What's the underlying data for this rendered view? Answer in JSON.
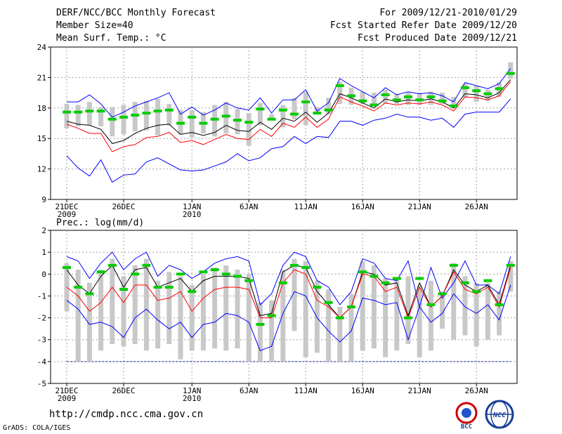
{
  "header": {
    "title": "DERF/NCC/BCC Monthly Forecast",
    "member": "Member Size=40",
    "variable1": "Mean Surf. Temp.: °C",
    "period": "For 2009/12/21-2010/01/29",
    "started": "Fcst Started Refer Date 2009/12/20",
    "produced": "Fcst Produced Date 2009/12/21"
  },
  "variable2": "Prec.: log(mm/d)",
  "footer": {
    "url": "http://cmdp.ncc.cma.gov.cn",
    "grads": "GrADS: COLA/IGES"
  },
  "logos": {
    "bcc": "BCC",
    "ncc": "NCC"
  },
  "colors": {
    "max": "#0000ff",
    "min": "#ff0000",
    "mean": "#000000",
    "median": "#00cc00",
    "box": "#c8c8c8",
    "grid": "#a0a0a0"
  },
  "chart_data": [
    {
      "type": "line",
      "title": "Mean Surf. Temp.: °C",
      "ylim": [
        9,
        24
      ],
      "yticks": [
        9,
        12,
        15,
        18,
        21,
        24
      ],
      "xticks": [
        {
          "day": 1,
          "label": "21DEC",
          "sub": "2009"
        },
        {
          "day": 6,
          "label": "26DEC",
          "sub": ""
        },
        {
          "day": 12,
          "label": "1JAN",
          "sub": "2010"
        },
        {
          "day": 17,
          "label": "6JAN",
          "sub": ""
        },
        {
          "day": 22,
          "label": "11JAN",
          "sub": ""
        },
        {
          "day": 27,
          "label": "16JAN",
          "sub": ""
        },
        {
          "day": 32,
          "label": "21JAN",
          "sub": ""
        },
        {
          "day": 37,
          "label": "26JAN",
          "sub": ""
        }
      ],
      "days": 40,
      "series": [
        {
          "name": "max",
          "values": [
            18.6,
            18.6,
            19.3,
            18.4,
            17.1,
            17.6,
            18.2,
            18.6,
            19.0,
            19.5,
            17.4,
            18.1,
            17.3,
            17.8,
            18.5,
            18.0,
            17.8,
            19.0,
            17.5,
            18.8,
            18.8,
            19.8,
            17.7,
            18.5,
            20.9,
            20.2,
            19.6,
            19.0,
            20.0,
            19.3,
            19.6,
            19.4,
            19.5,
            19.2,
            18.6,
            20.5,
            20.2,
            19.9,
            20.4,
            21.9
          ]
        },
        {
          "name": "mean",
          "values": [
            16.7,
            16.4,
            16.3,
            15.9,
            14.5,
            14.8,
            15.5,
            16.0,
            16.3,
            16.4,
            15.4,
            15.6,
            15.3,
            15.6,
            16.3,
            15.8,
            15.7,
            16.6,
            15.9,
            17.0,
            16.7,
            17.6,
            16.6,
            17.5,
            19.4,
            19.0,
            18.5,
            18.0,
            18.9,
            18.6,
            18.8,
            18.7,
            18.9,
            18.6,
            18.0,
            19.4,
            19.3,
            19.0,
            19.5,
            20.8
          ]
        },
        {
          "name": "min",
          "values": [
            16.4,
            16.0,
            15.5,
            15.5,
            13.7,
            14.2,
            14.4,
            15.1,
            15.2,
            15.6,
            14.6,
            14.8,
            14.4,
            14.9,
            15.4,
            15.0,
            14.9,
            15.9,
            15.2,
            16.5,
            16.1,
            17.1,
            16.1,
            16.9,
            19.1,
            18.6,
            18.2,
            17.7,
            18.5,
            18.3,
            18.5,
            18.4,
            18.6,
            18.3,
            17.7,
            19.1,
            19.0,
            18.8,
            19.2,
            20.6
          ]
        },
        {
          "name": "min_member",
          "values": [
            13.3,
            12.1,
            11.3,
            12.9,
            10.7,
            11.4,
            11.5,
            12.7,
            13.1,
            12.5,
            11.9,
            11.8,
            11.9,
            12.3,
            12.7,
            13.5,
            12.8,
            13.1,
            14.0,
            14.2,
            15.2,
            14.5,
            15.2,
            15.1,
            16.7,
            16.7,
            16.3,
            16.8,
            17.0,
            17.4,
            17.1,
            17.1,
            16.8,
            17.0,
            16.1,
            17.4,
            17.6,
            17.6,
            17.6,
            18.9
          ]
        },
        {
          "name": "median",
          "values": [
            17.6,
            17.6,
            17.7,
            17.7,
            16.9,
            17.1,
            17.3,
            17.5,
            17.7,
            17.8,
            16.5,
            17.1,
            16.5,
            16.9,
            17.2,
            16.8,
            16.6,
            17.9,
            16.9,
            17.8,
            17.4,
            18.6,
            17.5,
            17.8,
            20.2,
            19.2,
            18.7,
            18.3,
            19.3,
            18.8,
            19.1,
            18.8,
            19.1,
            18.7,
            18.2,
            20.0,
            19.7,
            19.4,
            19.9,
            21.4
          ]
        }
      ],
      "box_low": [
        16.0,
        16.2,
        16.3,
        16.2,
        15.2,
        15.4,
        15.7,
        15.8,
        15.3,
        16.3,
        15.4,
        15.1,
        15.5,
        15.2,
        15.5,
        15.4,
        14.3,
        16.3,
        16.8,
        16.1,
        16.9,
        16.3,
        17.6,
        17.4,
        18.4,
        18.3,
        18.4,
        18.3,
        18.4,
        18.4,
        18.3,
        18.3,
        18.3,
        18.4,
        18.3,
        19.0,
        18.6,
        18.7,
        19.1,
        20.9
      ],
      "box_high": [
        18.4,
        18.3,
        18.6,
        18.1,
        18.1,
        18.3,
        18.6,
        18.7,
        18.9,
        18.4,
        17.8,
        17.8,
        17.6,
        18.3,
        18.6,
        17.9,
        17.5,
        18.5,
        17.4,
        18.3,
        19.0,
        19.6,
        18.1,
        19.0,
        20.6,
        20.0,
        19.6,
        19.5,
        19.8,
        19.4,
        19.6,
        19.5,
        19.6,
        19.5,
        19.1,
        20.4,
        20.2,
        19.8,
        20.5,
        22.5
      ]
    },
    {
      "type": "line",
      "title": "Prec.: log(mm/d)",
      "ylim": [
        -5,
        2
      ],
      "yticks": [
        -5,
        -4,
        -3,
        -2,
        -1,
        0,
        1,
        2
      ],
      "days": 40,
      "baseline": -4,
      "series": [
        {
          "name": "max",
          "values": [
            0.8,
            0.6,
            -0.2,
            0.5,
            1.0,
            0.2,
            0.7,
            1.0,
            -0.1,
            0.4,
            0.2,
            -0.2,
            0.1,
            0.5,
            0.7,
            0.8,
            0.6,
            -1.4,
            -0.9,
            0.4,
            1.0,
            0.8,
            -0.3,
            -0.6,
            -1.4,
            -0.8,
            0.7,
            0.5,
            -0.2,
            -0.3,
            0.6,
            -1.5,
            0.3,
            -1.1,
            -0.4,
            0.6,
            -0.5,
            -0.5,
            -0.9,
            0.8
          ]
        },
        {
          "name": "mean",
          "values": [
            0.2,
            -0.5,
            -0.9,
            -0.1,
            0.4,
            -0.6,
            0.2,
            0.3,
            -0.6,
            -0.4,
            -0.2,
            -0.8,
            -0.3,
            -0.1,
            -0.1,
            -0.1,
            -0.2,
            -1.9,
            -1.8,
            0.1,
            0.4,
            0.3,
            -0.8,
            -1.4,
            -2.0,
            -1.5,
            0.1,
            0.0,
            -0.5,
            -0.4,
            -1.9,
            -0.4,
            -1.5,
            -1.0,
            0.2,
            -0.5,
            -0.8,
            -0.5,
            -1.4,
            0.4
          ]
        },
        {
          "name": "min",
          "values": [
            -0.6,
            -1.0,
            -1.7,
            -1.3,
            -0.6,
            -1.3,
            -0.5,
            -0.5,
            -1.2,
            -1.1,
            -0.8,
            -1.7,
            -1.1,
            -0.7,
            -0.6,
            -0.6,
            -0.7,
            -2.0,
            -2.0,
            -0.4,
            0.2,
            0.0,
            -1.2,
            -1.5,
            -2.0,
            -1.5,
            0.0,
            -0.1,
            -0.8,
            -0.6,
            -2.0,
            -0.6,
            -1.5,
            -1.0,
            0.1,
            -0.7,
            -0.9,
            -0.6,
            -1.5,
            0.3
          ]
        },
        {
          "name": "min_member",
          "values": [
            -1.2,
            -1.6,
            -2.3,
            -2.2,
            -2.4,
            -2.9,
            -2.0,
            -1.6,
            -2.1,
            -2.5,
            -2.2,
            -2.9,
            -2.3,
            -2.2,
            -1.8,
            -1.9,
            -2.2,
            -3.5,
            -3.3,
            -1.8,
            -0.8,
            -1.0,
            -2.0,
            -2.6,
            -3.1,
            -2.6,
            -1.1,
            -1.2,
            -1.4,
            -1.3,
            -3.0,
            -1.5,
            -2.2,
            -1.8,
            -0.9,
            -1.5,
            -1.8,
            -1.4,
            -2.1,
            -0.5
          ]
        },
        {
          "name": "median",
          "values": [
            0.3,
            -0.6,
            -0.9,
            0.1,
            0.4,
            -0.7,
            0.0,
            0.4,
            -0.6,
            -0.6,
            0.0,
            -0.8,
            0.1,
            0.2,
            0.0,
            -0.1,
            -0.3,
            -2.3,
            -1.9,
            -0.4,
            0.4,
            0.3,
            -0.6,
            -1.3,
            -2.0,
            -1.5,
            0.1,
            -0.1,
            -0.4,
            -0.2,
            -2.0,
            -0.2,
            -1.4,
            -0.9,
            0.4,
            -0.4,
            -0.8,
            -0.3,
            -1.4,
            0.4
          ]
        }
      ],
      "box_low": [
        -1.7,
        -4.0,
        -4.0,
        -3.5,
        -3.2,
        -3.3,
        -3.2,
        -3.5,
        -3.4,
        -3.2,
        -3.9,
        -3.5,
        -3.5,
        -3.4,
        -3.5,
        -3.4,
        -4.0,
        -4.0,
        -4.0,
        -4.0,
        -2.6,
        -3.8,
        -3.6,
        -4.0,
        -4.0,
        -4.0,
        -3.5,
        -3.4,
        -3.8,
        -3.5,
        -3.2,
        -3.8,
        -3.5,
        -2.5,
        -3.0,
        -2.8,
        -3.3,
        -3.0,
        -2.8,
        -0.8
      ],
      "box_high": [
        0.5,
        0.2,
        -0.4,
        0.2,
        0.7,
        -0.1,
        0.4,
        0.7,
        -0.3,
        0.1,
        -0.1,
        -0.5,
        0.0,
        0.3,
        0.4,
        0.2,
        0.0,
        -1.3,
        -1.2,
        0.2,
        0.7,
        0.6,
        -0.3,
        -0.7,
        -1.5,
        -0.9,
        0.6,
        0.4,
        -0.2,
        -0.2,
        -0.1,
        -0.5,
        -0.3,
        -0.8,
        0.5,
        -0.1,
        -0.4,
        -0.4,
        -0.8,
        0.6
      ]
    }
  ]
}
